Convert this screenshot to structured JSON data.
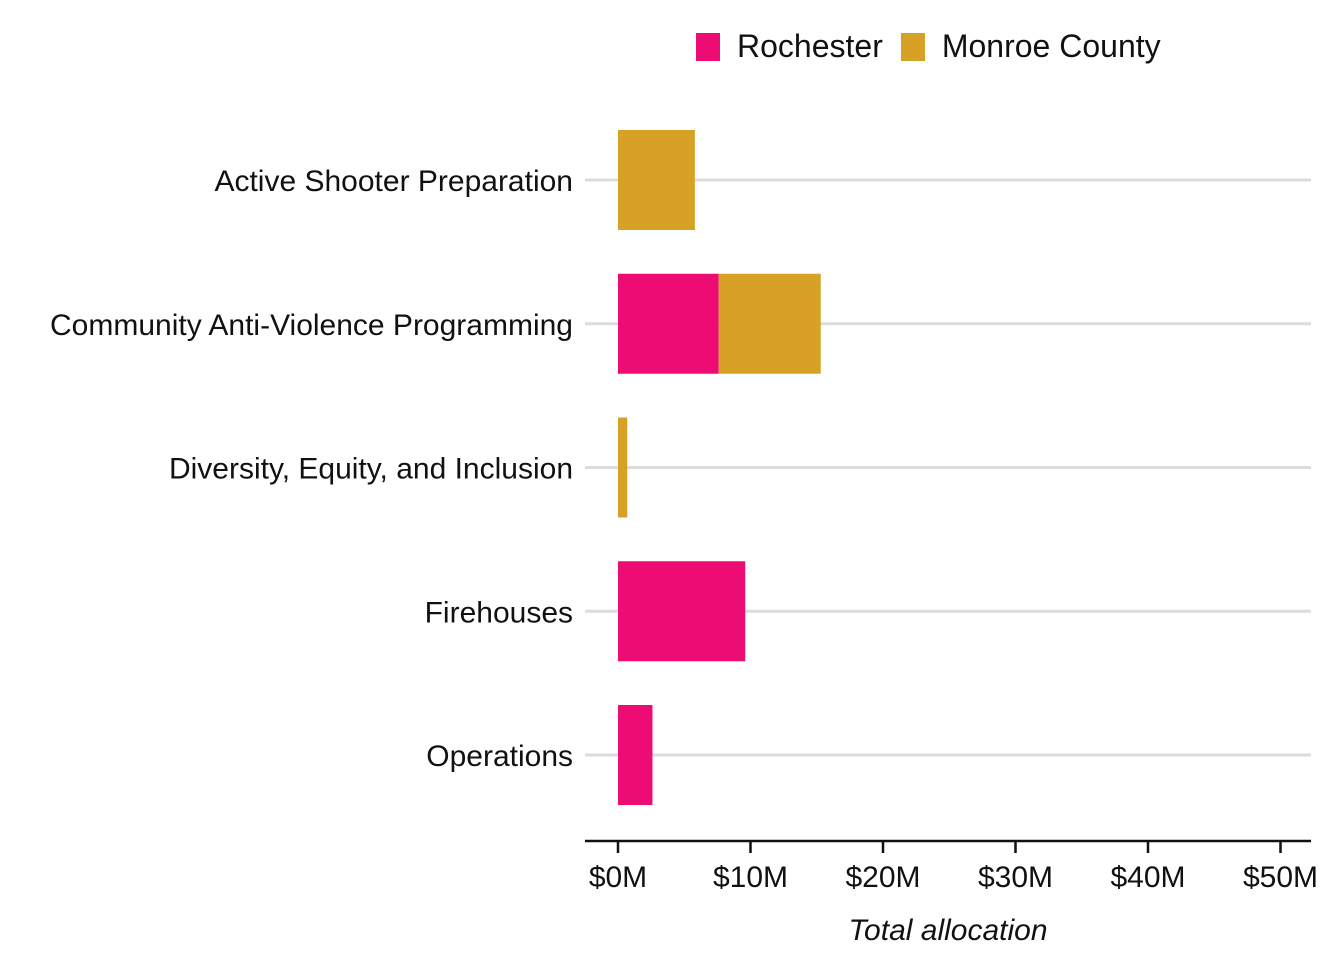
{
  "chart_data": {
    "type": "bar",
    "orientation": "horizontal",
    "stacked": true,
    "categories": [
      "Active Shooter Preparation",
      "Community Anti-Violence Programming",
      "Diversity, Equity, and Inclusion",
      "Firehouses",
      "Operations"
    ],
    "series": [
      {
        "name": "Rochester",
        "color": "#EC0C73",
        "values": [
          0,
          7.6,
          0,
          9.6,
          2.6
        ]
      },
      {
        "name": "Monroe County",
        "color": "#D6A125",
        "values": [
          5.8,
          7.7,
          0.7,
          0,
          0
        ]
      }
    ],
    "xlim": [
      0,
      52
    ],
    "xticks": [
      0,
      10,
      20,
      30,
      40,
      50
    ],
    "xtick_labels": [
      "$0M",
      "$10M",
      "$20M",
      "$30M",
      "$40M",
      "$50M"
    ],
    "xlabel": "Total allocation",
    "ylabel": "",
    "legend_position": "top",
    "grid": "horizontal"
  }
}
